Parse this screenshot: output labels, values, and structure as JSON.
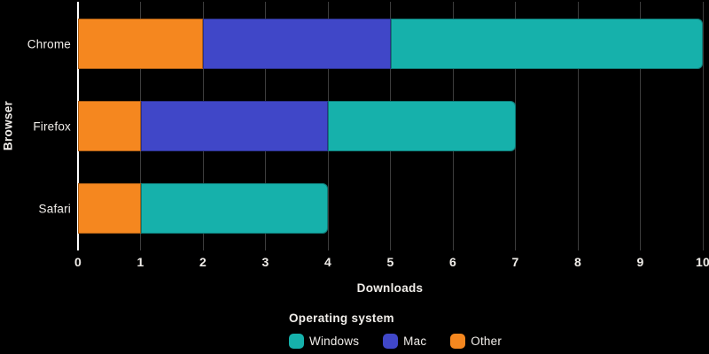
{
  "colors": {
    "background": "#000000",
    "grid": "#3d3d3d",
    "axis_line": "#ffffff",
    "text": "#f1eeea"
  },
  "chart_data": {
    "type": "bar",
    "orientation": "horizontal",
    "stacked": true,
    "categories": [
      "Chrome",
      "Firefox",
      "Safari"
    ],
    "series": [
      {
        "name": "Windows",
        "color": "#16b1ab",
        "values": [
          5,
          3,
          3
        ]
      },
      {
        "name": "Mac",
        "color": "#4047c8",
        "values": [
          3,
          3,
          0
        ]
      },
      {
        "name": "Other",
        "color": "#f5871f",
        "values": [
          2,
          1,
          1
        ]
      }
    ],
    "stack_order": [
      "Other",
      "Mac",
      "Windows"
    ],
    "totals": [
      10,
      7,
      4
    ],
    "xlabel": "Downloads",
    "ylabel": "Browser",
    "xlim": [
      0,
      10
    ],
    "xticks": [
      "0",
      "1",
      "2",
      "3",
      "4",
      "5",
      "6",
      "7",
      "8",
      "9",
      "10"
    ],
    "grid": true,
    "legend": {
      "title": "Operating system",
      "position": "bottom",
      "entries": [
        "Windows",
        "Mac",
        "Other"
      ]
    }
  }
}
